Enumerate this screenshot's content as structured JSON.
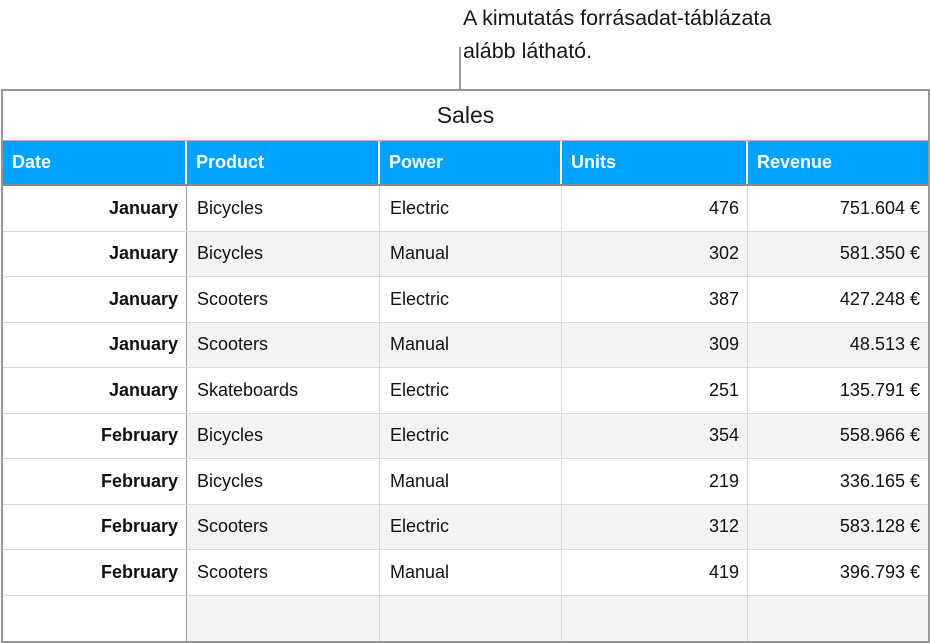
{
  "callout": {
    "line1": "A kimutatás forrásadat-táblázata",
    "line2": "alább látható."
  },
  "table": {
    "title": "Sales",
    "columns": [
      {
        "label": "Date"
      },
      {
        "label": "Product"
      },
      {
        "label": "Power"
      },
      {
        "label": "Units"
      },
      {
        "label": "Revenue"
      }
    ],
    "rows": [
      {
        "date": "January",
        "product": "Bicycles",
        "power": "Electric",
        "units": "476",
        "revenue": "751.604 €"
      },
      {
        "date": "January",
        "product": "Bicycles",
        "power": "Manual",
        "units": "302",
        "revenue": "581.350 €"
      },
      {
        "date": "January",
        "product": "Scooters",
        "power": "Electric",
        "units": "387",
        "revenue": "427.248 €"
      },
      {
        "date": "January",
        "product": "Scooters",
        "power": "Manual",
        "units": "309",
        "revenue": "48.513 €"
      },
      {
        "date": "January",
        "product": "Skateboards",
        "power": "Electric",
        "units": "251",
        "revenue": "135.791 €"
      },
      {
        "date": "February",
        "product": "Bicycles",
        "power": "Electric",
        "units": "354",
        "revenue": "558.966 €"
      },
      {
        "date": "February",
        "product": "Bicycles",
        "power": "Manual",
        "units": "219",
        "revenue": "336.165 €"
      },
      {
        "date": "February",
        "product": "Scooters",
        "power": "Electric",
        "units": "312",
        "revenue": "583.128 €"
      },
      {
        "date": "February",
        "product": "Scooters",
        "power": "Manual",
        "units": "419",
        "revenue": "396.793 €"
      }
    ],
    "colors": {
      "header_bg": "#00A2FF",
      "header_text": "#FFFFFF",
      "alt_row_bg": "#F4F3F1",
      "border_dark": "#979797",
      "border_light": "#D9D9D9"
    }
  }
}
